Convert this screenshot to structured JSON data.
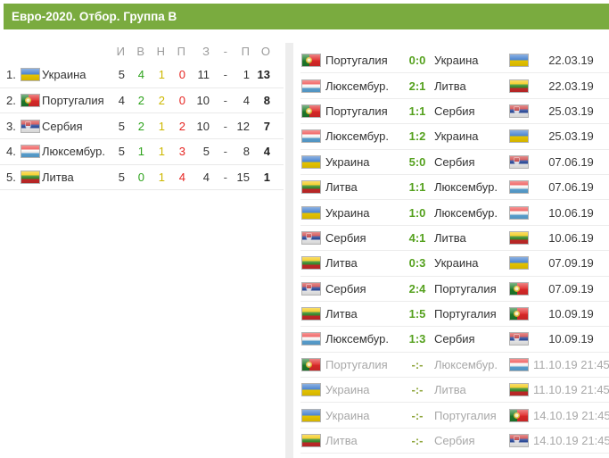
{
  "header": {
    "title": "Евро-2020. Отбор. Группа B"
  },
  "colors": {
    "header_green": "#7aab3f",
    "win_green": "#2ea31c",
    "draw_yellow": "#cdb800",
    "loss_red": "#e62622",
    "score_green": "#55a11e",
    "upcoming_gray": "#a8a8a8"
  },
  "standings": {
    "columns": [
      "И",
      "В",
      "Н",
      "П",
      "З",
      "-",
      "П",
      "О"
    ],
    "rows": [
      {
        "rank": "1.",
        "flag": "ukraine",
        "team": "Украина",
        "i": "5",
        "w": "4",
        "d": "1",
        "l": "0",
        "gf": "11",
        "sep": "-",
        "ga": "1",
        "pts": "13"
      },
      {
        "rank": "2.",
        "flag": "portugal",
        "team": "Португалия",
        "i": "4",
        "w": "2",
        "d": "2",
        "l": "0",
        "gf": "10",
        "sep": "-",
        "ga": "4",
        "pts": "8"
      },
      {
        "rank": "3.",
        "flag": "serbia",
        "team": "Сербия",
        "i": "5",
        "w": "2",
        "d": "1",
        "l": "2",
        "gf": "10",
        "sep": "-",
        "ga": "12",
        "pts": "7"
      },
      {
        "rank": "4.",
        "flag": "luxembourg",
        "team": "Люксембур.",
        "i": "5",
        "w": "1",
        "d": "1",
        "l": "3",
        "gf": "5",
        "sep": "-",
        "ga": "8",
        "pts": "4"
      },
      {
        "rank": "5.",
        "flag": "lithuania",
        "team": "Литва",
        "i": "5",
        "w": "0",
        "d": "1",
        "l": "4",
        "gf": "4",
        "sep": "-",
        "ga": "15",
        "pts": "1"
      }
    ]
  },
  "matches": [
    {
      "home": "Португалия",
      "home_flag": "portugal",
      "score": "0:0",
      "away": "Украина",
      "away_flag": "ukraine",
      "date": "22.03.19",
      "played": true
    },
    {
      "home": "Люксембур.",
      "home_flag": "luxembourg",
      "score": "2:1",
      "away": "Литва",
      "away_flag": "lithuania",
      "date": "22.03.19",
      "played": true
    },
    {
      "home": "Португалия",
      "home_flag": "portugal",
      "score": "1:1",
      "away": "Сербия",
      "away_flag": "serbia",
      "date": "25.03.19",
      "played": true
    },
    {
      "home": "Люксембур.",
      "home_flag": "luxembourg",
      "score": "1:2",
      "away": "Украина",
      "away_flag": "ukraine",
      "date": "25.03.19",
      "played": true
    },
    {
      "home": "Украина",
      "home_flag": "ukraine",
      "score": "5:0",
      "away": "Сербия",
      "away_flag": "serbia",
      "date": "07.06.19",
      "played": true
    },
    {
      "home": "Литва",
      "home_flag": "lithuania",
      "score": "1:1",
      "away": "Люксембур.",
      "away_flag": "luxembourg",
      "date": "07.06.19",
      "played": true
    },
    {
      "home": "Украина",
      "home_flag": "ukraine",
      "score": "1:0",
      "away": "Люксембур.",
      "away_flag": "luxembourg",
      "date": "10.06.19",
      "played": true
    },
    {
      "home": "Сербия",
      "home_flag": "serbia",
      "score": "4:1",
      "away": "Литва",
      "away_flag": "lithuania",
      "date": "10.06.19",
      "played": true
    },
    {
      "home": "Литва",
      "home_flag": "lithuania",
      "score": "0:3",
      "away": "Украина",
      "away_flag": "ukraine",
      "date": "07.09.19",
      "played": true
    },
    {
      "home": "Сербия",
      "home_flag": "serbia",
      "score": "2:4",
      "away": "Португалия",
      "away_flag": "portugal",
      "date": "07.09.19",
      "played": true
    },
    {
      "home": "Литва",
      "home_flag": "lithuania",
      "score": "1:5",
      "away": "Португалия",
      "away_flag": "portugal",
      "date": "10.09.19",
      "played": true
    },
    {
      "home": "Люксембур.",
      "home_flag": "luxembourg",
      "score": "1:3",
      "away": "Сербия",
      "away_flag": "serbia",
      "date": "10.09.19",
      "played": true
    },
    {
      "home": "Португалия",
      "home_flag": "portugal",
      "score": "-:-",
      "away": "Люксембур.",
      "away_flag": "luxembourg",
      "date": "11.10.19 21:45",
      "played": false
    },
    {
      "home": "Украина",
      "home_flag": "ukraine",
      "score": "-:-",
      "away": "Литва",
      "away_flag": "lithuania",
      "date": "11.10.19 21:45",
      "played": false
    },
    {
      "home": "Украина",
      "home_flag": "ukraine",
      "score": "-:-",
      "away": "Португалия",
      "away_flag": "portugal",
      "date": "14.10.19 21:45",
      "played": false
    },
    {
      "home": "Литва",
      "home_flag": "lithuania",
      "score": "-:-",
      "away": "Сербия",
      "away_flag": "serbia",
      "date": "14.10.19 21:45",
      "played": false
    }
  ]
}
